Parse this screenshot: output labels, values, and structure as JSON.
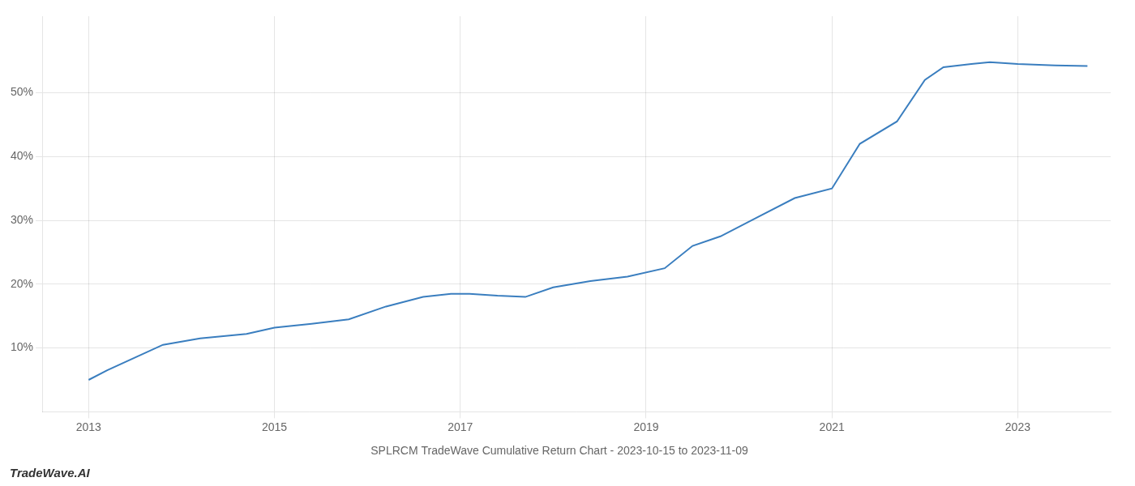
{
  "chart_data": {
    "type": "line",
    "title": "SPLRCM TradeWave Cumulative Return Chart - 2023-10-15 to 2023-11-09",
    "annotations": [
      "TradeWave.AI"
    ],
    "x": [
      2013.0,
      2013.2,
      2013.5,
      2013.8,
      2014.2,
      2014.7,
      2015.0,
      2015.4,
      2015.8,
      2016.2,
      2016.6,
      2016.9,
      2017.1,
      2017.4,
      2017.7,
      2018.0,
      2018.4,
      2018.8,
      2019.2,
      2019.5,
      2019.8,
      2020.2,
      2020.6,
      2021.0,
      2021.3,
      2021.7,
      2022.0,
      2022.2,
      2022.5,
      2022.7,
      2023.0,
      2023.4,
      2023.75
    ],
    "values": [
      5.0,
      6.5,
      8.5,
      10.5,
      11.5,
      12.2,
      13.2,
      13.8,
      14.5,
      16.5,
      18.0,
      18.5,
      18.5,
      18.2,
      18.0,
      19.5,
      20.5,
      21.2,
      22.5,
      26.0,
      27.5,
      30.5,
      33.5,
      35.0,
      42.0,
      45.5,
      52.0,
      54.0,
      54.5,
      54.8,
      54.5,
      54.3,
      54.2
    ],
    "color": "#3a7ebf",
    "xlim": [
      2012.5,
      2024.0
    ],
    "ylim": [
      0,
      62
    ],
    "xticks": [
      2013,
      2015,
      2017,
      2019,
      2021,
      2023
    ],
    "yticks": [
      {
        "value": 10,
        "label": "10%"
      },
      {
        "value": 20,
        "label": "20%"
      },
      {
        "value": 30,
        "label": "30%"
      },
      {
        "value": 40,
        "label": "40%"
      },
      {
        "value": 50,
        "label": "50%"
      }
    ],
    "grid": true
  }
}
